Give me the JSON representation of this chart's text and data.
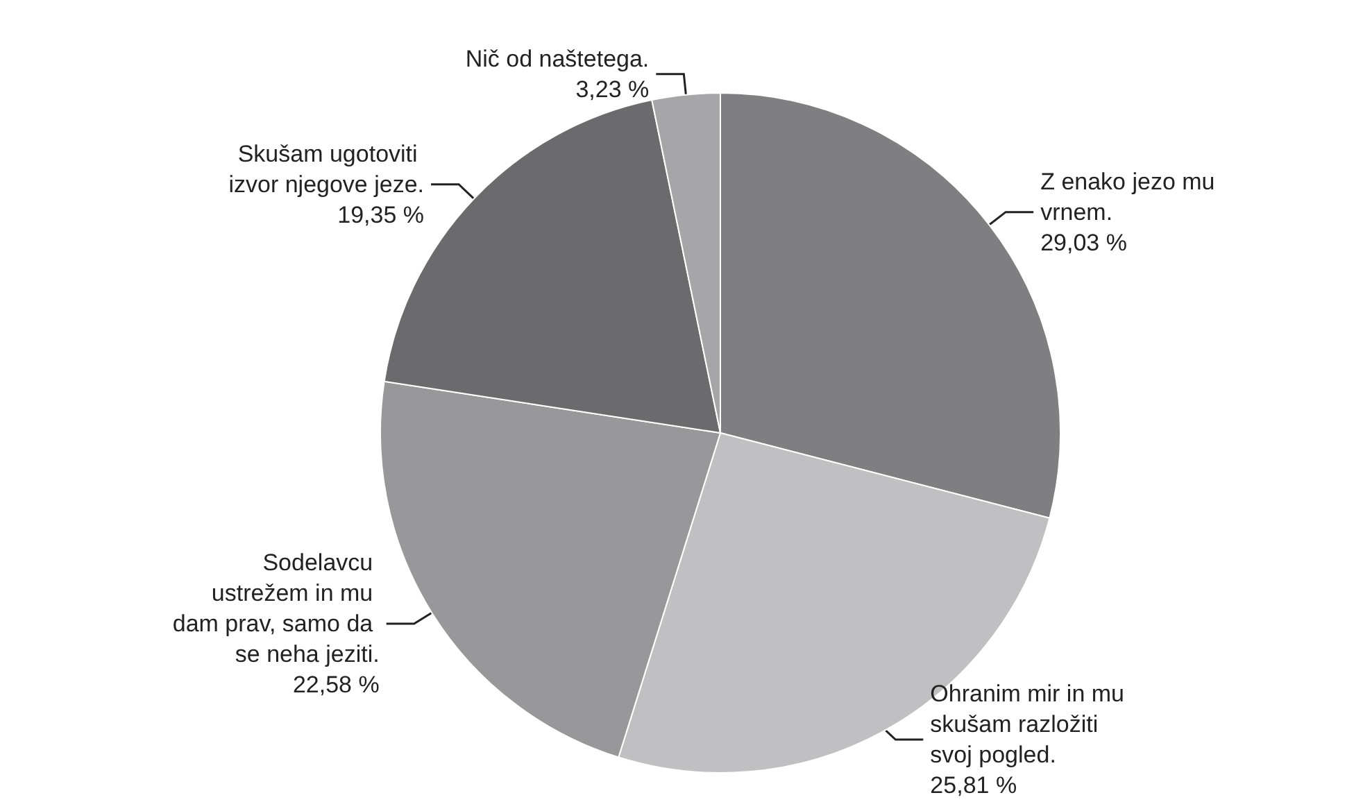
{
  "chart_data": {
    "type": "pie",
    "categories": [
      "Z enako jezo mu vrnem.",
      "Ohranim mir in mu skušam razložiti svoj pogled.",
      "Sodelavcu ustrežem in mu dam prav, samo da se neha jeziti.",
      "Skušam ugotoviti izvor njegove jeze.",
      "Nič od naštetega."
    ],
    "values": [
      29.03,
      25.81,
      22.58,
      19.35,
      3.23
    ],
    "colors": [
      "#7f7f81",
      "#c0c0c2",
      "#98989a",
      "#6b6b6d",
      "#a6a6a8"
    ],
    "value_labels": [
      "29,03 %",
      "25,81 %",
      "22,58 %",
      "19,35 %",
      "3,23 %"
    ],
    "legend": false
  }
}
